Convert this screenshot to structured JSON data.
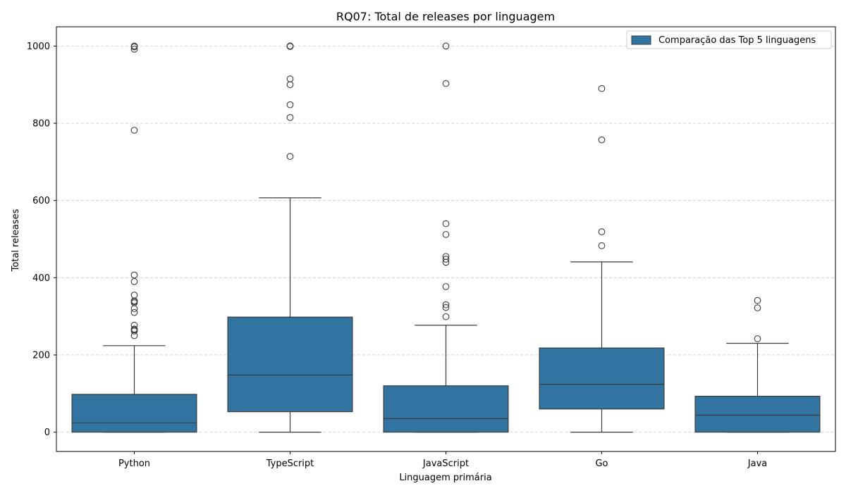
{
  "chart_data": {
    "type": "box",
    "title": "RQ07: Total de releases por linguagem",
    "xlabel": "Linguagem primária",
    "ylabel": "Total releases",
    "ylim": [
      -50,
      1050
    ],
    "yticks": [
      0,
      200,
      400,
      600,
      800,
      1000
    ],
    "grid": "y, dashed",
    "legend": {
      "placement": "top-right",
      "label": "Comparação das Top 5 linguagens"
    },
    "color": "#3274a1",
    "series": [
      {
        "category": "Python",
        "whisker_low": 0,
        "q1": 0,
        "median": 24,
        "q3": 98,
        "whisker_high": 224,
        "outliers": [
          250,
          262,
          265,
          267,
          277,
          310,
          320,
          335,
          338,
          340,
          355,
          390,
          407,
          782,
          992,
          998,
          1000
        ]
      },
      {
        "category": "TypeScript",
        "whisker_low": 0,
        "q1": 53,
        "median": 148,
        "q3": 298,
        "whisker_high": 607,
        "outliers": [
          714,
          815,
          848,
          900,
          915,
          999,
          1000,
          1000,
          1000
        ]
      },
      {
        "category": "JavaScript",
        "whisker_low": 0,
        "q1": 0,
        "median": 35,
        "q3": 120,
        "whisker_high": 277,
        "outliers": [
          299,
          323,
          330,
          377,
          440,
          448,
          455,
          512,
          540,
          903,
          1000
        ]
      },
      {
        "category": "Go",
        "whisker_low": 0,
        "q1": 60,
        "median": 124,
        "q3": 218,
        "whisker_high": 441,
        "outliers": [
          483,
          519,
          757,
          890
        ]
      },
      {
        "category": "Java",
        "whisker_low": 0,
        "q1": 0,
        "median": 44,
        "q3": 93,
        "whisker_high": 230,
        "outliers": [
          242,
          322,
          341
        ]
      }
    ]
  }
}
